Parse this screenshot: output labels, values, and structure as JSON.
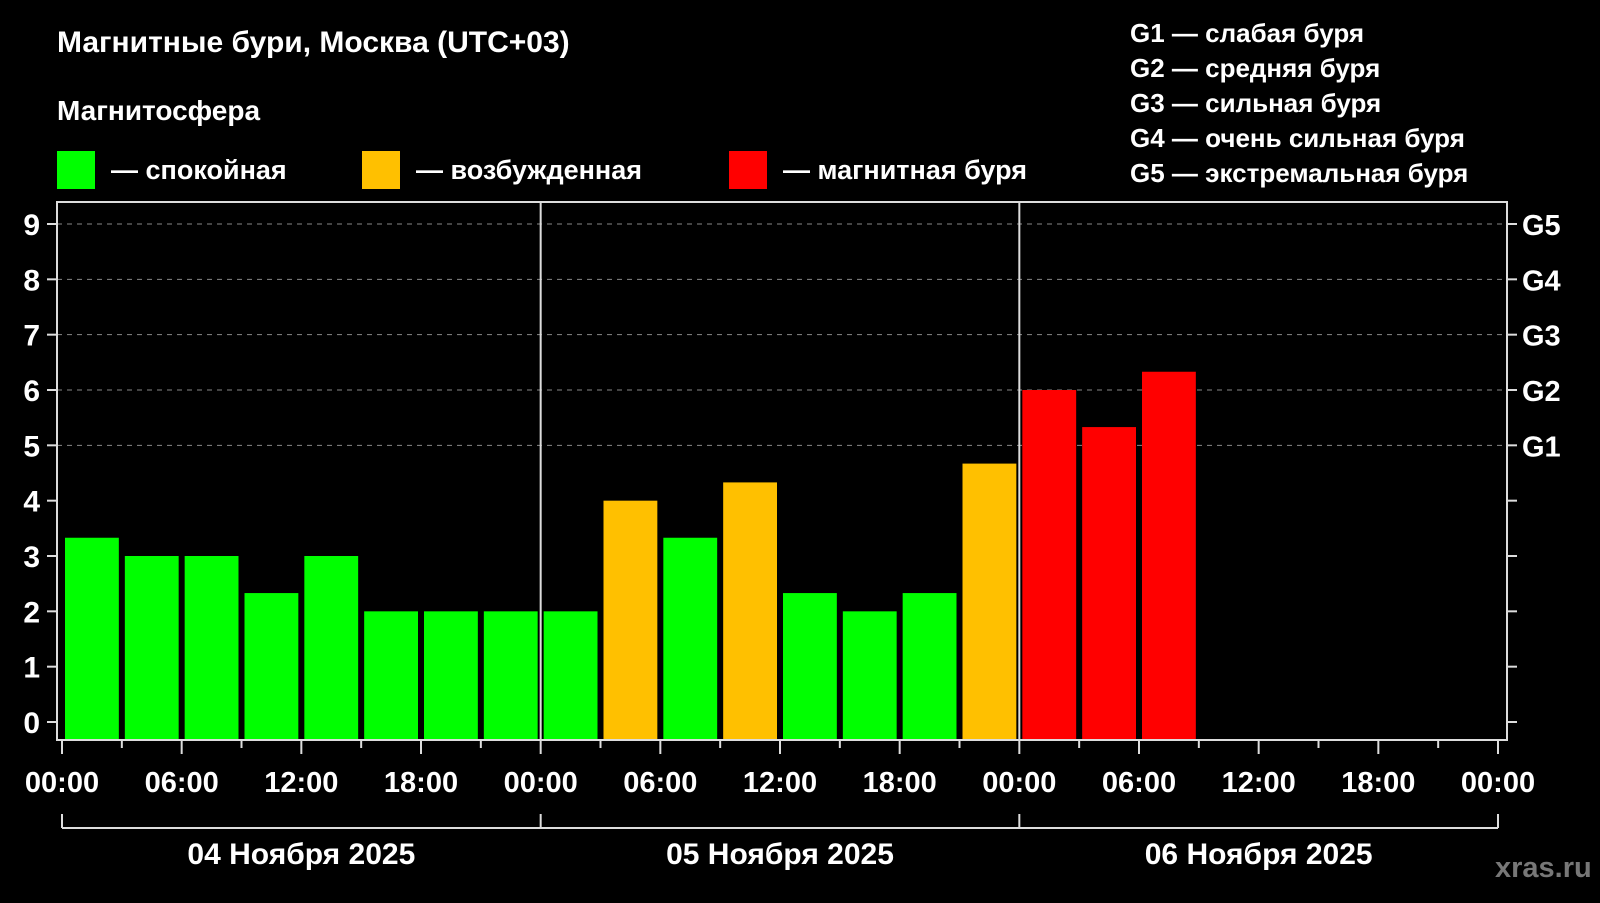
{
  "title": "Магнитные бури, Москва (UTC+03)",
  "subtitle": "Магнитосфера",
  "legend": [
    {
      "label": "— спокойная",
      "color": "#00ff00"
    },
    {
      "label": "— возбужденная",
      "color": "#ffc000"
    },
    {
      "label": "— магнитная буря",
      "color": "#ff0000"
    }
  ],
  "g_scale": [
    "G1 — слабая буря",
    "G2 — средняя буря",
    "G3 — сильная буря",
    "G4 — очень сильная буря",
    "G5 — экстремальная буря"
  ],
  "watermark": "xras.ru",
  "chart_data": {
    "type": "bar",
    "title": "Магнитные бури, Москва (UTC+03)",
    "ylim": [
      0,
      9
    ],
    "yticks": [
      "0",
      "1",
      "2",
      "3",
      "4",
      "5",
      "6",
      "7",
      "8",
      "9"
    ],
    "right_ticks": [
      {
        "y": 5,
        "label": "G1"
      },
      {
        "y": 6,
        "label": "G2"
      },
      {
        "y": 7,
        "label": "G3"
      },
      {
        "y": 8,
        "label": "G4"
      },
      {
        "y": 9,
        "label": "G5"
      }
    ],
    "grid": "dashed horizontal at 5-9",
    "xticks": [
      "00:00",
      "06:00",
      "12:00",
      "18:00",
      "00:00",
      "06:00",
      "12:00",
      "18:00",
      "00:00",
      "06:00",
      "12:00",
      "18:00",
      "00:00"
    ],
    "days": [
      "04 Ноября 2025",
      "05 Ноября 2025",
      "06 Ноября 2025"
    ],
    "bar_interval_hours": 3,
    "values": [
      3.33,
      3,
      3,
      2.33,
      3,
      2,
      2,
      2,
      2,
      4,
      3.33,
      4.33,
      2.33,
      2,
      2.33,
      4.67,
      6,
      5.33,
      6.33
    ],
    "colors": [
      "#00ff00",
      "#00ff00",
      "#00ff00",
      "#00ff00",
      "#00ff00",
      "#00ff00",
      "#00ff00",
      "#00ff00",
      "#00ff00",
      "#ffc000",
      "#00ff00",
      "#ffc000",
      "#00ff00",
      "#00ff00",
      "#00ff00",
      "#ffc000",
      "#ff0000",
      "#ff0000",
      "#ff0000"
    ]
  }
}
